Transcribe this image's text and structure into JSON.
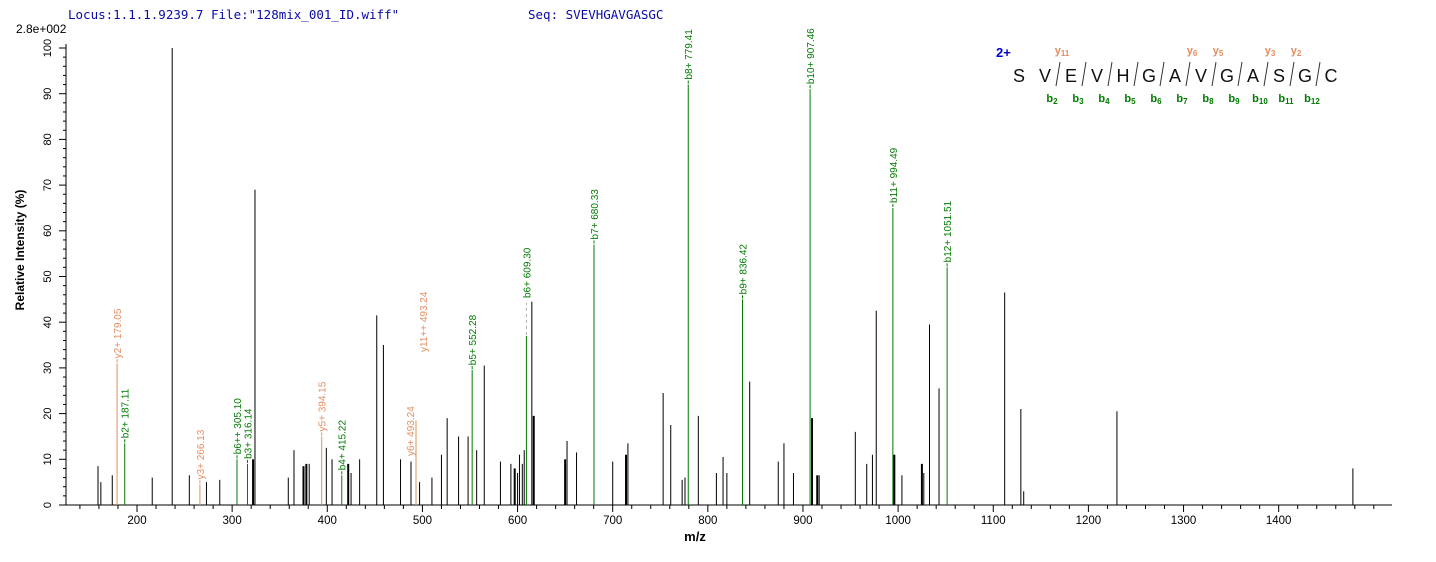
{
  "header": {
    "locus_file": "Locus:1.1.1.9239.7 File:\"128mix_001_ID.wiff\"",
    "seq": "Seq: SVEVHGAVGASGC",
    "max_intensity": "2.8e+002"
  },
  "colors": {
    "b_ion_green": "#007b00",
    "y_ion_orange": "#e58e60",
    "unassigned_black": "#000000",
    "header_blue": "#0a0aa8",
    "charge_blue": "#0000cc",
    "leader_gray": "#aaaaaa",
    "axis_black": "#000000"
  },
  "sequence_panel": {
    "charge": "2+",
    "residues": [
      "S",
      "V",
      "E",
      "V",
      "H",
      "G",
      "A",
      "V",
      "G",
      "A",
      "S",
      "G",
      "C"
    ],
    "y_ions": [
      {
        "n": "y",
        "sub": "11",
        "gap": 2
      },
      {
        "n": "y",
        "sub": "6",
        "gap": 7
      },
      {
        "n": "y",
        "sub": "5",
        "gap": 8
      },
      {
        "n": "y",
        "sub": "3",
        "gap": 10
      },
      {
        "n": "y",
        "sub": "2",
        "gap": 11
      }
    ],
    "b_ions": [
      {
        "n": "b",
        "sub": "2",
        "gap": 2
      },
      {
        "n": "b",
        "sub": "3",
        "gap": 3
      },
      {
        "n": "b",
        "sub": "4",
        "gap": 4
      },
      {
        "n": "b",
        "sub": "5",
        "gap": 5
      },
      {
        "n": "b",
        "sub": "6",
        "gap": 6
      },
      {
        "n": "b",
        "sub": "7",
        "gap": 7
      },
      {
        "n": "b",
        "sub": "8",
        "gap": 8
      },
      {
        "n": "b",
        "sub": "9",
        "gap": 9
      },
      {
        "n": "b",
        "sub": "10",
        "gap": 10
      },
      {
        "n": "b",
        "sub": "11",
        "gap": 11
      },
      {
        "n": "b",
        "sub": "12",
        "gap": 12
      }
    ]
  },
  "chart_data": {
    "type": "bar",
    "subtype": "ms2-fragment-spectrum-stick-plot",
    "title": "",
    "xlabel": "m/z",
    "ylabel": "Relative  Intensity (%)",
    "x_domain": [
      125,
      1515
    ],
    "y_domain": [
      0,
      100
    ],
    "x_major_ticks": [
      200,
      300,
      400,
      500,
      600,
      700,
      800,
      900,
      1000,
      1100,
      1200,
      1300,
      1400
    ],
    "x_minor_step": 20,
    "y_major_step": 10,
    "y_minor_step": 2,
    "grid": false,
    "legend": "none",
    "peaks": [
      {
        "mz": 159,
        "i": 8.5,
        "s": "u"
      },
      {
        "mz": 162,
        "i": 5,
        "s": "u"
      },
      {
        "mz": 174,
        "i": 6.5,
        "s": "u"
      },
      {
        "mz": 179.05,
        "i": 31,
        "s": "y",
        "l": "y2+ 179.05"
      },
      {
        "mz": 187.11,
        "i": 13.5,
        "s": "b",
        "l": "b2+ 187.11"
      },
      {
        "mz": 216,
        "i": 6,
        "s": "u"
      },
      {
        "mz": 237,
        "i": 100,
        "s": "u"
      },
      {
        "mz": 255,
        "i": 6.5,
        "s": "u"
      },
      {
        "mz": 266.13,
        "i": 4.5,
        "s": "y",
        "l": "y3+ 266.13"
      },
      {
        "mz": 273,
        "i": 5,
        "s": "u"
      },
      {
        "mz": 287,
        "i": 5.5,
        "s": "u"
      },
      {
        "mz": 305.1,
        "i": 10,
        "s": "b",
        "l": "b6++ 305.10"
      },
      {
        "mz": 316.14,
        "i": 9,
        "s": "b",
        "l": "b3+ 316.14"
      },
      {
        "mz": 322,
        "i": 10,
        "s": "u",
        "w": 2
      },
      {
        "mz": 324,
        "i": 69,
        "s": "u"
      },
      {
        "mz": 359,
        "i": 6,
        "s": "u"
      },
      {
        "mz": 365,
        "i": 12,
        "s": "u"
      },
      {
        "mz": 375,
        "i": 8.5,
        "s": "u",
        "w": 2
      },
      {
        "mz": 378,
        "i": 9,
        "s": "u",
        "w": 2
      },
      {
        "mz": 381,
        "i": 9,
        "s": "u"
      },
      {
        "mz": 394.15,
        "i": 15,
        "s": "y",
        "l": "y5+ 394.15"
      },
      {
        "mz": 399,
        "i": 12.5,
        "s": "u"
      },
      {
        "mz": 405,
        "i": 10,
        "s": "u"
      },
      {
        "mz": 415.22,
        "i": 6.5,
        "s": "b",
        "l": "b4+ 415.22"
      },
      {
        "mz": 422,
        "i": 9,
        "s": "u",
        "w": 2
      },
      {
        "mz": 425,
        "i": 7,
        "s": "u"
      },
      {
        "mz": 434,
        "i": 10,
        "s": "u"
      },
      {
        "mz": 452,
        "i": 41.5,
        "s": "u"
      },
      {
        "mz": 459,
        "i": 35,
        "s": "u"
      },
      {
        "mz": 477,
        "i": 10,
        "s": "u"
      },
      {
        "mz": 488,
        "i": 9.5,
        "s": "u"
      },
      {
        "mz": 493.24,
        "i": 18.5,
        "s": "y",
        "l": "y6+ 493.24",
        "l2": "y11++ 493.24"
      },
      {
        "mz": 497,
        "i": 5,
        "s": "u"
      },
      {
        "mz": 510,
        "i": 6,
        "s": "u"
      },
      {
        "mz": 520,
        "i": 11,
        "s": "u"
      },
      {
        "mz": 526,
        "i": 19,
        "s": "u"
      },
      {
        "mz": 538,
        "i": 15,
        "s": "u"
      },
      {
        "mz": 548,
        "i": 15,
        "s": "u"
      },
      {
        "mz": 552.28,
        "i": 29.5,
        "s": "b",
        "l": "b5+ 552.28"
      },
      {
        "mz": 557,
        "i": 12,
        "s": "u"
      },
      {
        "mz": 565,
        "i": 30.5,
        "s": "u"
      },
      {
        "mz": 582,
        "i": 9.5,
        "s": "u"
      },
      {
        "mz": 593,
        "i": 9,
        "s": "u"
      },
      {
        "mz": 597,
        "i": 8,
        "s": "u",
        "w": 2
      },
      {
        "mz": 600,
        "i": 7,
        "s": "u"
      },
      {
        "mz": 602,
        "i": 11,
        "s": "u"
      },
      {
        "mz": 605,
        "i": 9,
        "s": "u"
      },
      {
        "mz": 607,
        "i": 12,
        "s": "u"
      },
      {
        "mz": 609.3,
        "i": 37,
        "s": "b",
        "l": "b6+ 609.30",
        "leader": true
      },
      {
        "mz": 615,
        "i": 44.5,
        "s": "u"
      },
      {
        "mz": 617,
        "i": 19.5,
        "s": "u",
        "w": 2
      },
      {
        "mz": 650,
        "i": 10,
        "s": "u",
        "w": 2
      },
      {
        "mz": 652,
        "i": 14,
        "s": "u"
      },
      {
        "mz": 662,
        "i": 11.5,
        "s": "u"
      },
      {
        "mz": 680.33,
        "i": 57,
        "s": "b",
        "l": "b7+ 680.33"
      },
      {
        "mz": 700,
        "i": 9.5,
        "s": "u"
      },
      {
        "mz": 714,
        "i": 11,
        "s": "u",
        "w": 2
      },
      {
        "mz": 716,
        "i": 13.5,
        "s": "u"
      },
      {
        "mz": 753,
        "i": 24.5,
        "s": "u"
      },
      {
        "mz": 761,
        "i": 17.5,
        "s": "u"
      },
      {
        "mz": 773,
        "i": 5.5,
        "s": "u"
      },
      {
        "mz": 776,
        "i": 6,
        "s": "u"
      },
      {
        "mz": 779.41,
        "i": 92,
        "s": "b",
        "l": "b8+ 779.41"
      },
      {
        "mz": 790,
        "i": 19.5,
        "s": "u"
      },
      {
        "mz": 809,
        "i": 7,
        "s": "u"
      },
      {
        "mz": 816,
        "i": 10.5,
        "s": "u"
      },
      {
        "mz": 820,
        "i": 7,
        "s": "u"
      },
      {
        "mz": 836.42,
        "i": 45,
        "s": "b",
        "l": "b9+ 836.42"
      },
      {
        "mz": 844,
        "i": 27,
        "s": "u"
      },
      {
        "mz": 874,
        "i": 9.5,
        "s": "u"
      },
      {
        "mz": 880,
        "i": 13.5,
        "s": "u"
      },
      {
        "mz": 890,
        "i": 7,
        "s": "u"
      },
      {
        "mz": 907.46,
        "i": 91,
        "s": "b",
        "l": "b10+ 907.46"
      },
      {
        "mz": 909.5,
        "i": 19,
        "s": "u",
        "w": 2
      },
      {
        "mz": 915,
        "i": 6.5,
        "s": "u",
        "w": 2
      },
      {
        "mz": 917,
        "i": 6.5,
        "s": "u"
      },
      {
        "mz": 955,
        "i": 16,
        "s": "u"
      },
      {
        "mz": 967,
        "i": 9,
        "s": "u"
      },
      {
        "mz": 973,
        "i": 11,
        "s": "u"
      },
      {
        "mz": 977,
        "i": 42.5,
        "s": "u"
      },
      {
        "mz": 994.49,
        "i": 65,
        "s": "b",
        "l": "b11+ 994.49"
      },
      {
        "mz": 996,
        "i": 11,
        "s": "u",
        "w": 2
      },
      {
        "mz": 1004,
        "i": 6.5,
        "s": "u"
      },
      {
        "mz": 1025,
        "i": 9,
        "s": "u",
        "w": 2
      },
      {
        "mz": 1027,
        "i": 7,
        "s": "u"
      },
      {
        "mz": 1033,
        "i": 39.5,
        "s": "u"
      },
      {
        "mz": 1043,
        "i": 25.5,
        "s": "u"
      },
      {
        "mz": 1051.51,
        "i": 52,
        "s": "b",
        "l": "b12+ 1051.51"
      },
      {
        "mz": 1112,
        "i": 46.5,
        "s": "u"
      },
      {
        "mz": 1129,
        "i": 21,
        "s": "u"
      },
      {
        "mz": 1132,
        "i": 3,
        "s": "u"
      },
      {
        "mz": 1230,
        "i": 20.5,
        "s": "u"
      },
      {
        "mz": 1478,
        "i": 8,
        "s": "u"
      }
    ]
  }
}
